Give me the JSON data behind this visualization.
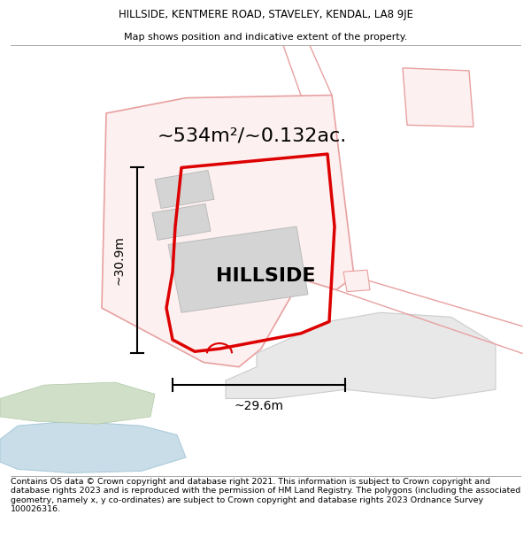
{
  "title_line1": "HILLSIDE, KENTMERE ROAD, STAVELEY, KENDAL, LA8 9JE",
  "title_line2": "Map shows position and indicative extent of the property.",
  "footer_text": "Contains OS data © Crown copyright and database right 2021. This information is subject to Crown copyright and database rights 2023 and is reproduced with the permission of HM Land Registry. The polygons (including the associated geometry, namely x, y co-ordinates) are subject to Crown copyright and database rights 2023 Ordnance Survey 100026316.",
  "area_text": "~534m²/~0.132ac.",
  "hillside_label": "HILLSIDE",
  "dim_vertical": "~30.9m",
  "dim_horizontal": "~29.6m",
  "map_bg": "#ffffff",
  "pink_edge": "#e8a0a0",
  "pink_fill": "#fdf0f0",
  "red_outline": "#dd0000",
  "building_fill": "#d4d4d4",
  "building_edge": "#bbbbbb",
  "road_fill": "#e8e8e8",
  "road_edge": "#cccccc",
  "gray_path_fill": "#e0e0e0",
  "gray_path_edge": "#c0c0c0",
  "water_fill": "#c8dde8",
  "water_edge": "#a8c8d8",
  "green_fill": "#d0e0c8",
  "green_edge": "#b0c8a8",
  "title_fontsize": 8.5,
  "subtitle_fontsize": 8.0,
  "area_fontsize": 16,
  "label_fontsize": 16,
  "dim_fontsize": 10,
  "footer_fontsize": 6.8
}
